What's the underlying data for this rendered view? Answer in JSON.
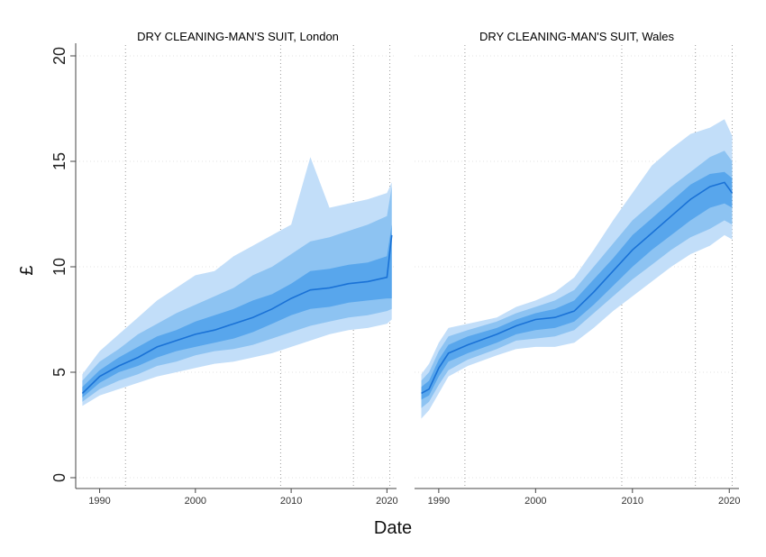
{
  "chart_data": {
    "type": "area",
    "xlabel": "Date",
    "ylabel": "£",
    "ylim": [
      0,
      20
    ],
    "yticks": [
      "0",
      "5",
      "10",
      "15",
      "20"
    ],
    "xlim": [
      1987.5,
      2021
    ],
    "xticks": [
      "1990",
      "2000",
      "2010",
      "2020"
    ],
    "grid": "horizontal dotted at y ticks",
    "vertical_reference_lines": [
      1992.7,
      2008.9,
      2016.5,
      2020.3
    ],
    "colors": {
      "outer_band": "#c2def9",
      "mid_band": "#8dc3f2",
      "inner_band": "#58a6ec",
      "median_line": "#1a72d6"
    },
    "panels": [
      {
        "title": "DRY CLEANING-MAN'S SUIT, London",
        "x": [
          1988.2,
          1990,
          1992,
          1994,
          1996,
          1998,
          2000,
          2002,
          2004,
          2006,
          2008,
          2010,
          2012,
          2014,
          2016,
          2018,
          2020,
          2020.5
        ],
        "median": [
          4.0,
          4.8,
          5.3,
          5.7,
          6.2,
          6.5,
          6.8,
          7.0,
          7.3,
          7.6,
          8.0,
          8.5,
          8.9,
          9.0,
          9.2,
          9.3,
          9.5,
          11.5
        ],
        "p25": [
          3.8,
          4.5,
          5.0,
          5.3,
          5.7,
          6.0,
          6.2,
          6.4,
          6.6,
          6.9,
          7.3,
          7.7,
          8.0,
          8.1,
          8.3,
          8.4,
          8.5,
          8.5
        ],
        "p75": [
          4.3,
          5.1,
          5.7,
          6.2,
          6.7,
          7.0,
          7.4,
          7.7,
          8.0,
          8.4,
          8.7,
          9.2,
          9.8,
          9.9,
          10.1,
          10.2,
          10.5,
          12.0
        ],
        "p10": [
          3.6,
          4.2,
          4.6,
          4.9,
          5.3,
          5.5,
          5.8,
          6.0,
          6.1,
          6.3,
          6.6,
          6.9,
          7.2,
          7.4,
          7.6,
          7.7,
          7.9,
          8.0
        ],
        "p90": [
          4.6,
          5.5,
          6.1,
          6.8,
          7.3,
          7.8,
          8.2,
          8.6,
          9.0,
          9.6,
          10.0,
          10.6,
          11.2,
          11.4,
          11.7,
          12.0,
          12.4,
          13.8
        ],
        "min": [
          3.4,
          3.9,
          4.2,
          4.5,
          4.8,
          5.0,
          5.2,
          5.4,
          5.5,
          5.7,
          5.9,
          6.2,
          6.5,
          6.8,
          7.0,
          7.1,
          7.3,
          7.5
        ],
        "max": [
          4.9,
          6.0,
          6.8,
          7.6,
          8.4,
          9.0,
          9.6,
          9.8,
          10.5,
          11.0,
          11.5,
          12.0,
          15.2,
          12.8,
          13.0,
          13.2,
          13.5,
          14.0
        ]
      },
      {
        "title": "DRY CLEANING-MAN'S SUIT, Wales",
        "x": [
          1988.2,
          1989,
          1990,
          1991,
          1993,
          1996,
          1998,
          2000,
          2002,
          2004,
          2006,
          2008,
          2010,
          2012,
          2014,
          2016,
          2018,
          2019.5,
          2020.3
        ],
        "median": [
          4.0,
          4.2,
          5.2,
          5.9,
          6.3,
          6.8,
          7.2,
          7.5,
          7.6,
          7.9,
          8.8,
          9.8,
          10.8,
          11.6,
          12.4,
          13.2,
          13.8,
          14.0,
          13.5
        ],
        "p25": [
          3.7,
          3.9,
          4.8,
          5.5,
          5.9,
          6.4,
          6.8,
          7.0,
          7.1,
          7.4,
          8.2,
          9.1,
          10.0,
          10.8,
          11.5,
          12.2,
          12.8,
          13.0,
          12.8
        ],
        "p75": [
          4.3,
          4.6,
          5.6,
          6.3,
          6.7,
          7.1,
          7.5,
          7.8,
          8.0,
          8.4,
          9.4,
          10.4,
          11.5,
          12.3,
          13.1,
          13.9,
          14.4,
          14.5,
          14.2
        ],
        "p10": [
          3.3,
          3.6,
          4.4,
          5.1,
          5.6,
          6.1,
          6.5,
          6.6,
          6.7,
          7.0,
          7.8,
          8.6,
          9.4,
          10.1,
          10.8,
          11.4,
          11.8,
          12.2,
          12.0
        ],
        "p90": [
          4.6,
          5.0,
          6.0,
          6.7,
          7.0,
          7.4,
          7.8,
          8.1,
          8.4,
          8.9,
          10.0,
          11.1,
          12.2,
          13.0,
          13.8,
          14.5,
          15.2,
          15.5,
          15.0
        ],
        "min": [
          2.8,
          3.2,
          4.0,
          4.8,
          5.3,
          5.8,
          6.1,
          6.2,
          6.2,
          6.4,
          7.1,
          7.9,
          8.6,
          9.3,
          10.0,
          10.6,
          11.0,
          11.5,
          11.3
        ],
        "max": [
          4.9,
          5.4,
          6.4,
          7.1,
          7.3,
          7.6,
          8.1,
          8.4,
          8.8,
          9.5,
          10.8,
          12.2,
          13.5,
          14.8,
          15.6,
          16.3,
          16.6,
          17.0,
          16.2
        ]
      }
    ]
  }
}
